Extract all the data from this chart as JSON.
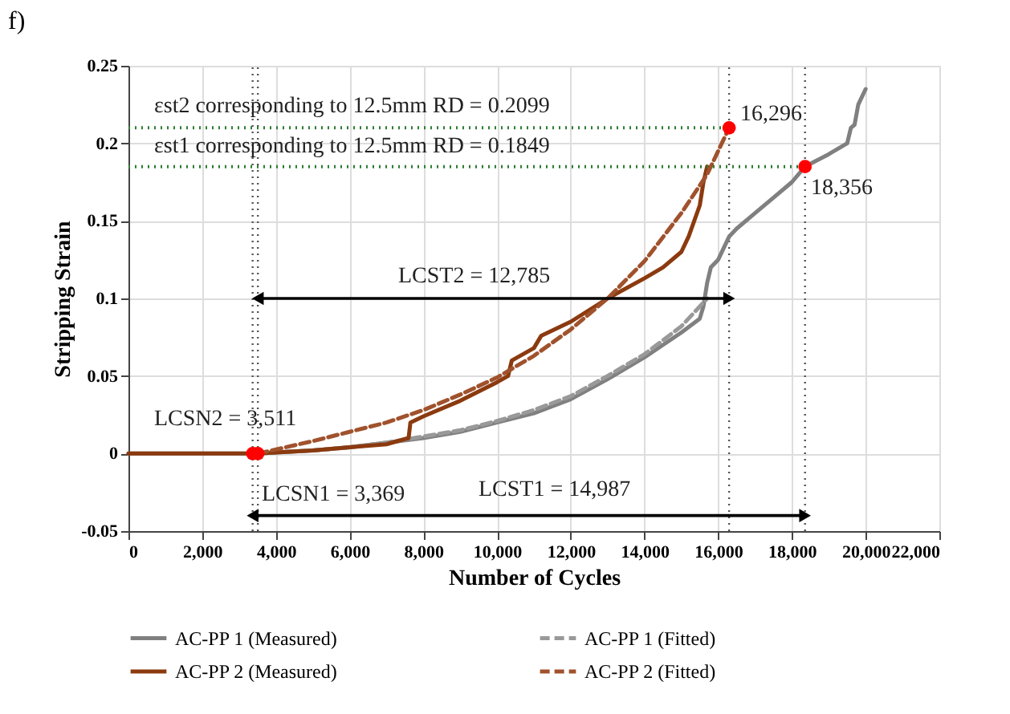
{
  "chart_data": {
    "type": "line",
    "title": "f)",
    "xlabel": "Number of Cycles",
    "ylabel": "Stripping Strain",
    "xlim": [
      0,
      22000
    ],
    "xticks": [
      0,
      {
        "value": 2000,
        "label": "2,000"
      },
      {
        "value": 4000,
        "label": "4,000"
      },
      {
        "value": 6000,
        "label": "6,000"
      },
      {
        "value": 8000,
        "label": "8,000"
      },
      {
        "value": 10000,
        "label": "10,000"
      },
      {
        "value": 12000,
        "label": "12,000"
      },
      {
        "value": 14000,
        "label": "14,000"
      },
      {
        "value": 16000,
        "label": "16,000"
      },
      {
        "value": 18000,
        "label": "18,000"
      },
      {
        "value": 20000,
        "label": "20,000"
      },
      {
        "value": 22000,
        "label": "22,000"
      }
    ],
    "ylim": [
      -0.05,
      0.25
    ],
    "yticks": [
      -0.05,
      0,
      0.05,
      0.1,
      0.15,
      0.2,
      0.25
    ],
    "grid": true,
    "legend": "bottom",
    "series": [
      {
        "name": "AC-PP 1 (Measured)",
        "color": "#808080",
        "line_style": "solid",
        "x": [
          0,
          1000,
          2000,
          3000,
          3500,
          5000,
          6000,
          7000,
          8000,
          9000,
          10000,
          11000,
          12000,
          13000,
          14000,
          15000,
          15500,
          15600,
          15700,
          15800,
          16000,
          16300,
          16500,
          17000,
          17500,
          18000,
          18356,
          19000,
          19500,
          19600,
          19700,
          19800,
          20000
        ],
        "values": [
          0,
          0,
          0,
          0,
          0,
          0.002,
          0.004,
          0.007,
          0.01,
          0.014,
          0.02,
          0.026,
          0.035,
          0.048,
          0.062,
          0.078,
          0.087,
          0.095,
          0.11,
          0.12,
          0.125,
          0.14,
          0.145,
          0.155,
          0.165,
          0.175,
          0.185,
          0.193,
          0.2,
          0.21,
          0.212,
          0.225,
          0.235
        ]
      },
      {
        "name": "AC-PP 1 (Fitted)",
        "color": "#999999",
        "line_style": "dashed",
        "x": [
          3369,
          5000,
          6000,
          7000,
          8000,
          9000,
          10000,
          11000,
          12000,
          13000,
          14000,
          15000,
          15700
        ],
        "values": [
          0,
          0.002,
          0.004,
          0.007,
          0.011,
          0.015,
          0.021,
          0.028,
          0.037,
          0.05,
          0.064,
          0.082,
          0.1
        ]
      },
      {
        "name": "AC-PP 2 (Measured)",
        "color": "#8b3a0f",
        "line_style": "solid",
        "x": [
          0,
          1000,
          2000,
          3000,
          3500,
          5000,
          6000,
          7000,
          7600,
          7650,
          8000,
          9000,
          10000,
          10300,
          10400,
          11000,
          11200,
          12000,
          13000,
          14000,
          14500,
          15000,
          15200,
          15500,
          15600,
          15700
        ],
        "values": [
          0,
          0,
          0,
          0,
          0,
          0.002,
          0.004,
          0.006,
          0.01,
          0.02,
          0.024,
          0.034,
          0.046,
          0.05,
          0.06,
          0.068,
          0.076,
          0.085,
          0.1,
          0.113,
          0.12,
          0.13,
          0.14,
          0.16,
          0.175,
          0.185
        ]
      },
      {
        "name": "AC-PP 2 (Fitted)",
        "color": "#a0522d",
        "line_style": "dashed",
        "x": [
          3511,
          5000,
          6000,
          7000,
          8000,
          9000,
          10000,
          11000,
          12000,
          13000,
          14000,
          15000,
          15700,
          16296
        ],
        "values": [
          0,
          0.008,
          0.014,
          0.02,
          0.028,
          0.038,
          0.049,
          0.063,
          0.08,
          0.1,
          0.124,
          0.155,
          0.18,
          0.21
        ]
      },
      {
        "color": "#2e7d32",
        "line_style": "dotted",
        "x": [
          0,
          16296
        ],
        "values": [
          0.21,
          0.21
        ]
      },
      {
        "color": "#2e7d32",
        "line_style": "dotted",
        "x": [
          0,
          18356
        ],
        "values": [
          0.185,
          0.185
        ]
      },
      {
        "color": "#000000",
        "line_style": "solid",
        "marker": "triangle",
        "x": [
          3511,
          16296
        ],
        "values": [
          0.1,
          0.1
        ]
      },
      {
        "color": "#000000",
        "line_style": "solid",
        "marker": "triangle",
        "x": [
          3369,
          18356
        ],
        "values": [
          -0.04,
          -0.04
        ]
      },
      {
        "type": "scatter",
        "color": "#ff0000",
        "marker": "circle",
        "x": [
          3369,
          3511,
          16296,
          18356
        ],
        "values": [
          0,
          0,
          0.21,
          0.185
        ]
      }
    ],
    "ref_lines": [
      {
        "axis": "x",
        "value": 3369,
        "color": "#555555",
        "line_style": "dotted"
      },
      {
        "axis": "x",
        "value": 3511,
        "color": "#555555",
        "line_style": "dotted"
      },
      {
        "axis": "x",
        "value": 16296,
        "color": "#555555",
        "line_style": "dotted"
      },
      {
        "axis": "x",
        "value": 18356,
        "color": "#555555",
        "line_style": "dotted"
      }
    ],
    "annotations": [
      "εst2 corresponding to 12.5mm RD  = 0.2099",
      "εst1 corresponding to 12.5mm RD  = 0.1849",
      "16,296",
      "18,356",
      "LCST2 = 12,785",
      "LCSN2 = 3,511",
      "LCSN1 = 3,369",
      "LCST1 = 14,987"
    ]
  }
}
